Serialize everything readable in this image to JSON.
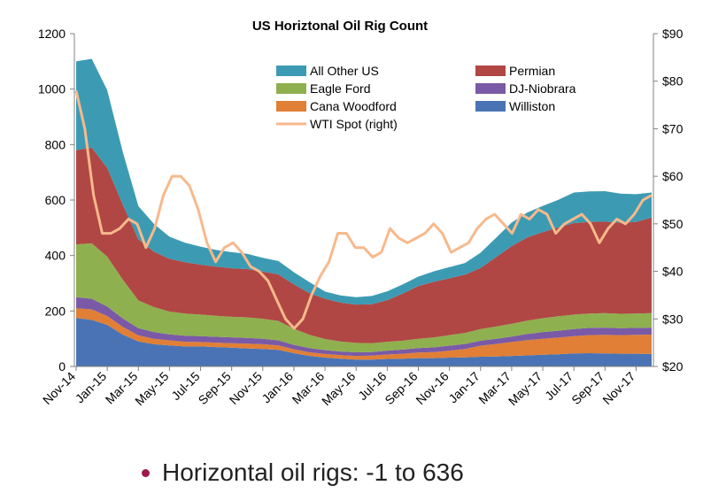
{
  "bullet": {
    "text": "Horizontal oil rigs: -1 to 636",
    "dot_color": "#9b1b4b"
  },
  "chart_data": {
    "type": "area",
    "title": "US Horiztonal Oil Rig Count",
    "xlabel": "",
    "ylabel": "",
    "x_tick_labels": [
      "Nov-14",
      "Jan-15",
      "Mar-15",
      "May-15",
      "Jul-15",
      "Sep-15",
      "Nov-15",
      "Jan-16",
      "Mar-16",
      "May-16",
      "Jul-16",
      "Sep-16",
      "Nov-16",
      "Jan-17",
      "Mar-17",
      "May-17",
      "Jul-17",
      "Sep-17",
      "Nov-17"
    ],
    "ylim_left": [
      0,
      1200
    ],
    "yticks_left": [
      "0",
      "200",
      "400",
      "600",
      "800",
      "1000",
      "1200"
    ],
    "ylim_right": [
      20,
      90
    ],
    "yticks_right": [
      "$20",
      "$30",
      "$40",
      "$50",
      "$60",
      "$70",
      "$80",
      "$90"
    ],
    "grid": false,
    "legend": "top-center",
    "x_months": [
      "Nov-14",
      "Dec-14",
      "Jan-15",
      "Feb-15",
      "Mar-15",
      "Apr-15",
      "May-15",
      "Jun-15",
      "Jul-15",
      "Aug-15",
      "Sep-15",
      "Oct-15",
      "Nov-15",
      "Dec-15",
      "Jan-16",
      "Feb-16",
      "Mar-16",
      "Apr-16",
      "May-16",
      "Jun-16",
      "Jul-16",
      "Aug-16",
      "Sep-16",
      "Oct-16",
      "Nov-16",
      "Dec-16",
      "Jan-17",
      "Feb-17",
      "Mar-17",
      "Apr-17",
      "May-17",
      "Jun-17",
      "Jul-17",
      "Aug-17",
      "Sep-17",
      "Oct-17",
      "Nov-17",
      "Dec-17"
    ],
    "series": [
      {
        "name": "Williston",
        "color": "#4a73b5",
        "values": [
          175,
          168,
          150,
          115,
          90,
          80,
          76,
          72,
          72,
          70,
          68,
          65,
          63,
          60,
          48,
          38,
          32,
          28,
          25,
          25,
          27,
          28,
          30,
          30,
          32,
          33,
          35,
          36,
          38,
          40,
          42,
          44,
          47,
          48,
          47,
          46,
          46,
          45
        ]
      },
      {
        "name": "Cana Woodford",
        "color": "#e07f35",
        "values": [
          35,
          38,
          32,
          28,
          22,
          20,
          18,
          17,
          16,
          16,
          16,
          17,
          17,
          16,
          14,
          13,
          13,
          13,
          13,
          14,
          16,
          18,
          20,
          22,
          25,
          30,
          40,
          45,
          50,
          55,
          58,
          60,
          62,
          65,
          67,
          67,
          68,
          70
        ]
      },
      {
        "name": "DJ-Niobrara",
        "color": "#7a5aa6",
        "values": [
          40,
          38,
          34,
          30,
          26,
          24,
          22,
          22,
          21,
          21,
          21,
          21,
          20,
          18,
          16,
          15,
          14,
          13,
          13,
          13,
          14,
          15,
          16,
          17,
          18,
          18,
          18,
          19,
          20,
          22,
          24,
          25,
          26,
          26,
          26,
          25,
          25,
          25
        ]
      },
      {
        "name": "Eagle Ford",
        "color": "#8fb04e",
        "values": [
          190,
          200,
          180,
          140,
          100,
          90,
          82,
          80,
          78,
          76,
          74,
          74,
          72,
          70,
          58,
          48,
          40,
          36,
          34,
          32,
          32,
          32,
          34,
          36,
          38,
          40,
          42,
          44,
          46,
          48,
          50,
          52,
          52,
          52,
          52,
          52,
          52,
          52
        ]
      },
      {
        "name": "Permian",
        "color": "#b04744",
        "values": [
          340,
          345,
          320,
          270,
          220,
          200,
          190,
          185,
          180,
          177,
          175,
          174,
          170,
          168,
          160,
          150,
          145,
          140,
          138,
          140,
          150,
          170,
          190,
          200,
          205,
          210,
          220,
          250,
          280,
          300,
          310,
          320,
          330,
          330,
          330,
          328,
          330,
          345
        ]
      },
      {
        "name": "All Other US",
        "color": "#3c9bb3",
        "values": [
          320,
          320,
          280,
          190,
          120,
          100,
          80,
          70,
          65,
          60,
          58,
          55,
          50,
          48,
          44,
          40,
          26,
          26,
          27,
          30,
          32,
          33,
          34,
          38,
          40,
          42,
          55,
          70,
          85,
          90,
          95,
          100,
          110,
          110,
          110,
          105,
          100,
          90
        ]
      }
    ],
    "line_series": {
      "name": "WTI Spot (right)",
      "color": "#f7b98c",
      "axis": "right",
      "values": [
        78,
        70,
        56,
        48,
        48,
        49,
        51,
        50,
        45,
        49,
        56,
        60,
        60,
        58,
        53,
        46,
        42,
        45,
        46,
        44,
        41,
        40,
        38,
        34,
        30,
        28,
        30,
        35,
        39,
        42,
        48,
        48,
        45,
        45,
        43,
        44,
        49,
        47,
        46,
        47,
        48,
        50,
        48,
        44,
        45,
        46,
        49,
        51,
        52,
        50,
        48,
        52,
        51,
        53,
        52,
        48,
        50,
        51,
        52,
        50,
        46,
        49,
        51,
        50,
        52,
        55,
        56
      ]
    }
  }
}
